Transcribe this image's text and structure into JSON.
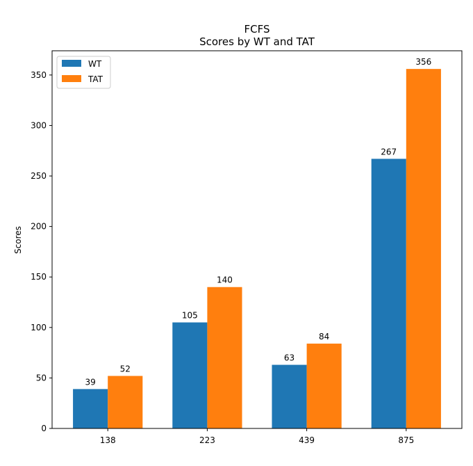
{
  "chart_data": {
    "type": "bar",
    "title": "FCFS",
    "subtitle": "Scores by WT and TAT",
    "xlabel": "",
    "ylabel": "Scores",
    "categories": [
      "138",
      "223",
      "439",
      "875"
    ],
    "series": [
      {
        "name": "WT",
        "values": [
          39,
          105,
          63,
          267
        ],
        "color": "#1f77b4"
      },
      {
        "name": "TAT",
        "values": [
          52,
          140,
          84,
          356
        ],
        "color": "#ff7f0e"
      }
    ],
    "ylim": [
      0,
      374
    ],
    "yticks": [
      0,
      50,
      100,
      150,
      200,
      250,
      300,
      350
    ],
    "grid": false,
    "legend_position": "top-left"
  }
}
